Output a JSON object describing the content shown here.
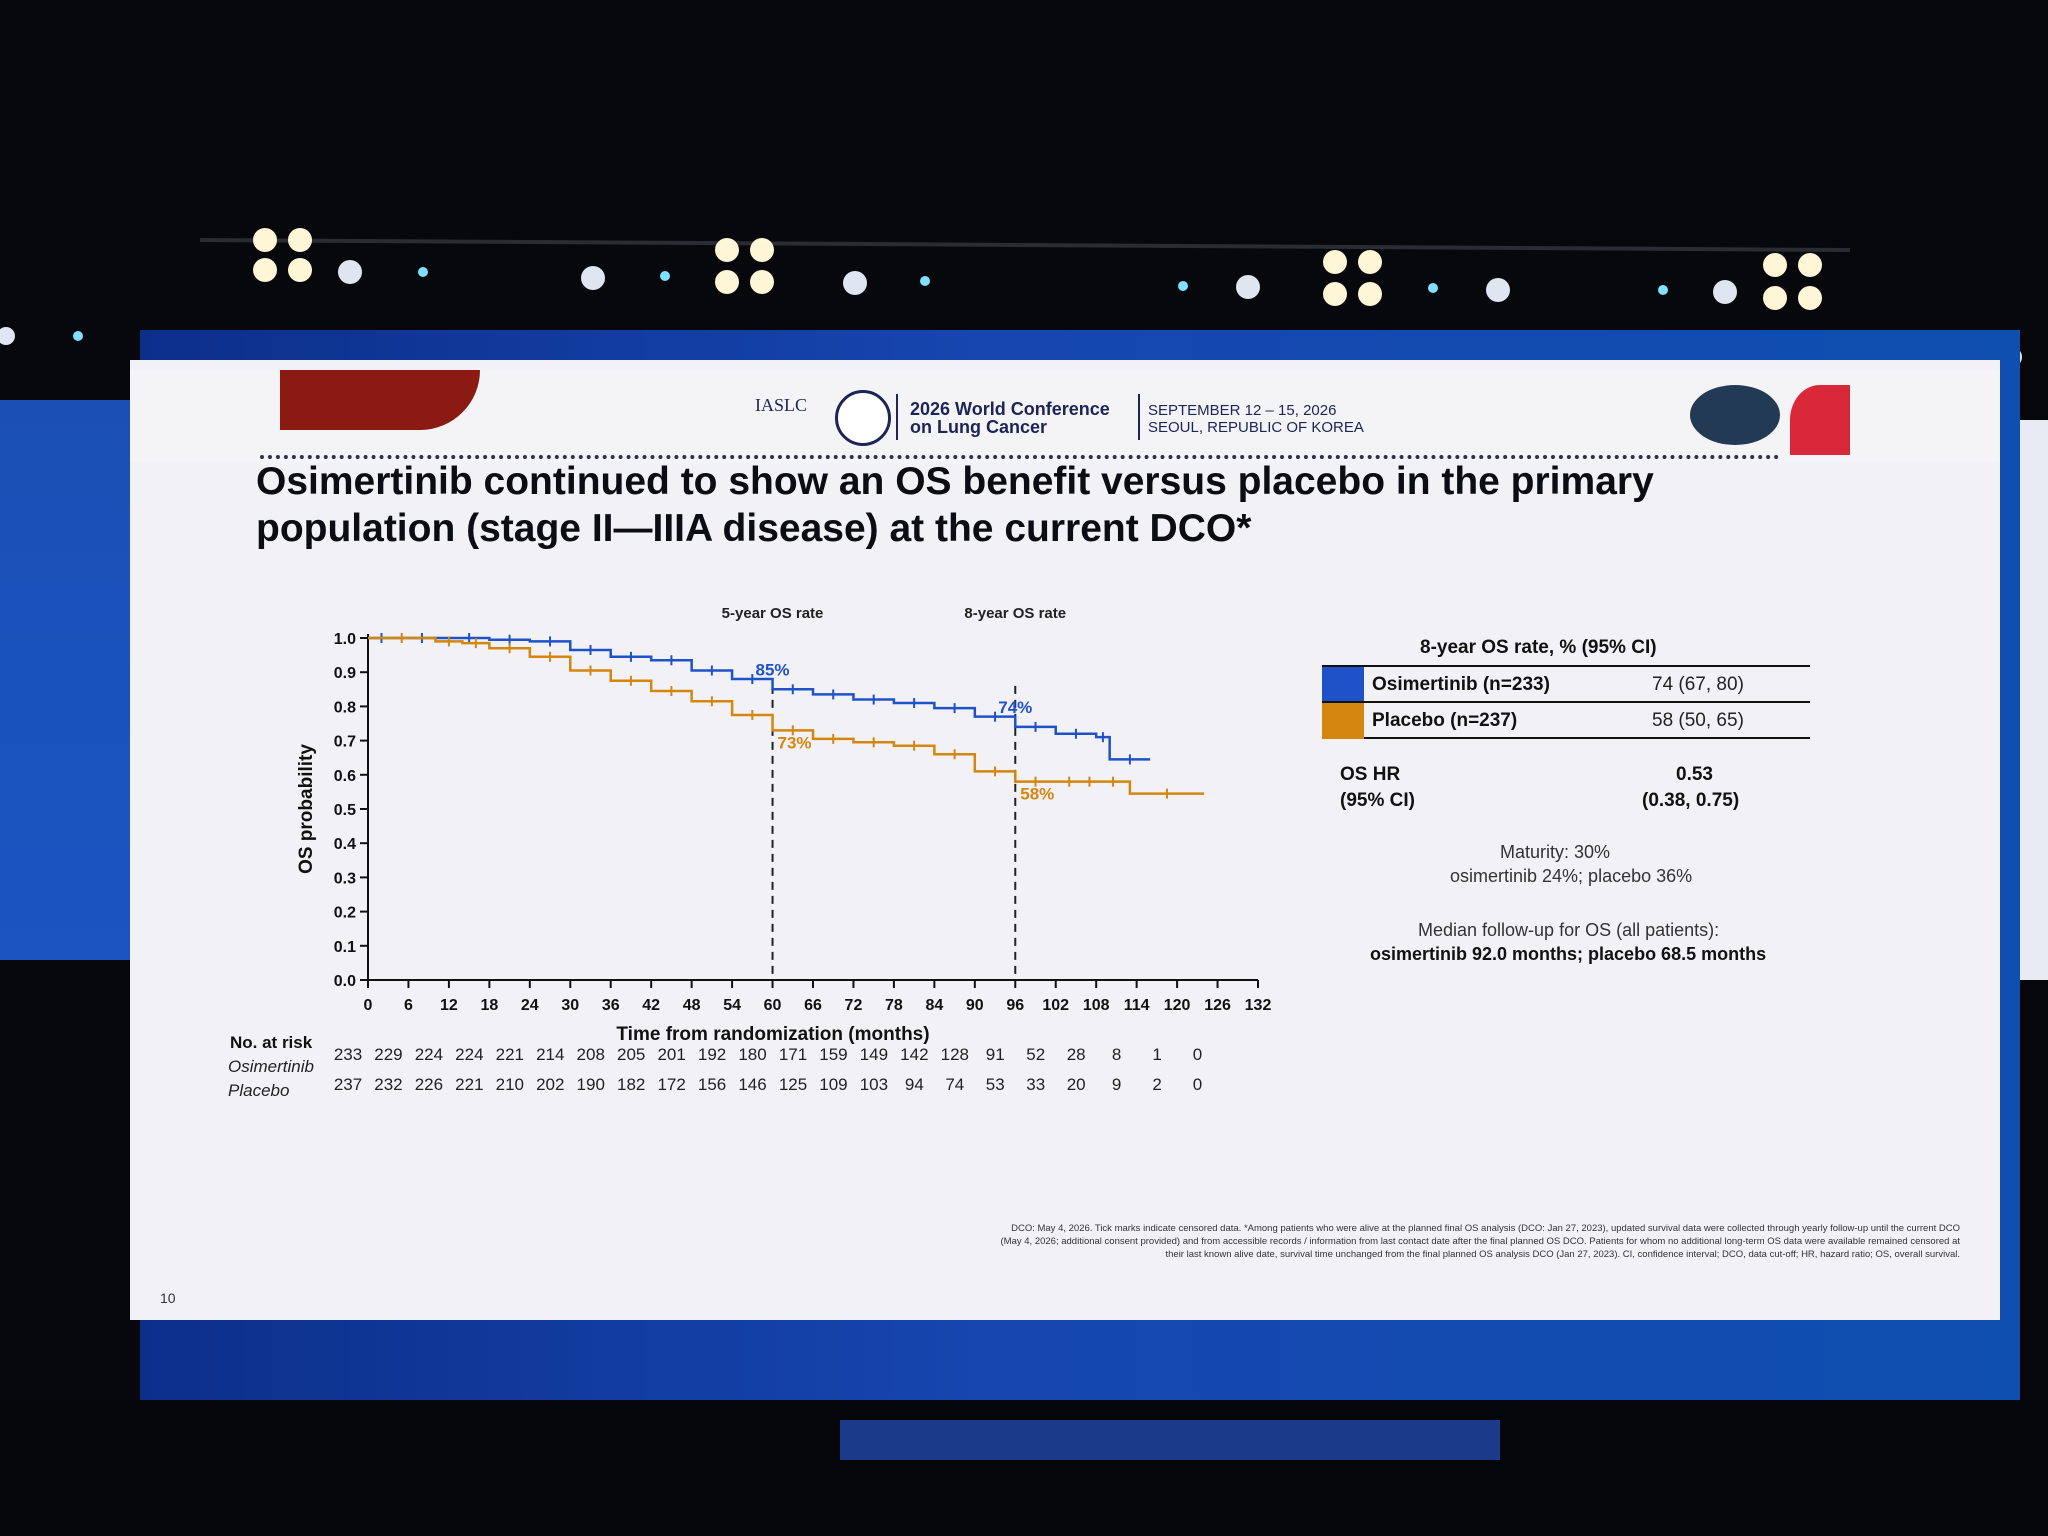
{
  "conference": {
    "org_logo_text": "IASLC",
    "name_line1": "2026 World Conference",
    "name_line2": "on Lung Cancer",
    "date": "SEPTEMBER 12 – 15, 2026",
    "location": "SEOUL, REPUBLIC OF KOREA"
  },
  "slide": {
    "title_line1": "Osimertinib continued to show an OS benefit versus placebo in the primary",
    "title_line2": "population (stage II—IIIA disease) at the current DCO*",
    "page_number": "10",
    "footnote_line1": "DCO: May 4, 2026. Tick marks indicate censored data. *Among patients who were alive at the planned final OS analysis (DCO: Jan 27, 2023), updated survival data were collected through yearly follow-up until the current DCO",
    "footnote_line2": "(May 4, 2026; additional consent provided) and from accessible records / information from last contact date after the final planned OS DCO. Patients for whom no additional long-term OS data were available remained censored at",
    "footnote_line3": "their last known alive date, survival time unchanged from the final planned OS analysis DCO (Jan 27, 2023). CI, confidence interval; DCO, data cut-off; HR, hazard ratio; OS, overall survival."
  },
  "legend": {
    "title": "8-year OS rate, % (95% CI)",
    "rows": [
      {
        "label": "Osimertinib (n=233)",
        "value": "74 (67, 80)",
        "color": "#1f52c8"
      },
      {
        "label": "Placebo (n=237)",
        "value": "58 (50, 65)",
        "color": "#d4860f"
      }
    ]
  },
  "stats": {
    "hr_label_line1": "OS HR",
    "hr_label_line2": "(95% CI)",
    "hr_value": "0.53",
    "hr_ci": "(0.38, 0.75)",
    "maturity_line1": "Maturity: 30%",
    "maturity_line2": "osimertinib 24%; placebo 36%",
    "followup_line1": "Median follow-up for OS (all patients):",
    "followup_line2": "osimertinib 92.0 months; placebo 68.5 months"
  },
  "chart_data": {
    "type": "line",
    "xlabel": "Time from randomization (months)",
    "ylabel": "OS probability",
    "xlim": [
      0,
      132
    ],
    "ylim": [
      0,
      1.0
    ],
    "x_ticks": [
      0,
      6,
      12,
      18,
      24,
      30,
      36,
      42,
      48,
      54,
      60,
      66,
      72,
      78,
      84,
      90,
      96,
      102,
      108,
      114,
      120,
      126,
      132
    ],
    "y_ticks": [
      "0.0",
      "0.1",
      "0.2",
      "0.3",
      "0.4",
      "0.5",
      "0.6",
      "0.7",
      "0.8",
      "0.9",
      "1.0"
    ],
    "annotations": [
      {
        "label": "5-year OS rate",
        "x": 60
      },
      {
        "label": "8-year OS rate",
        "x": 96
      }
    ],
    "series": [
      {
        "name": "Osimertinib",
        "color": "#1f52c8",
        "x": [
          0,
          4,
          12,
          18,
          24,
          30,
          36,
          42,
          48,
          54,
          60,
          66,
          72,
          78,
          84,
          90,
          96,
          102,
          108,
          110,
          116
        ],
        "y": [
          1.0,
          1.0,
          1.0,
          0.995,
          0.99,
          0.965,
          0.945,
          0.935,
          0.905,
          0.88,
          0.85,
          0.835,
          0.82,
          0.81,
          0.795,
          0.77,
          0.74,
          0.72,
          0.71,
          0.645,
          0.645
        ],
        "rate_labels": [
          {
            "x": 60,
            "y": 0.85,
            "text": "85%"
          },
          {
            "x": 96,
            "y": 0.74,
            "text": "74%"
          }
        ]
      },
      {
        "name": "Placebo",
        "color": "#d4860f",
        "x": [
          0,
          10,
          14,
          18,
          24,
          30,
          36,
          42,
          48,
          54,
          60,
          66,
          72,
          78,
          84,
          90,
          96,
          102,
          106,
          108,
          113,
          124
        ],
        "y": [
          1.0,
          0.99,
          0.985,
          0.97,
          0.945,
          0.905,
          0.875,
          0.845,
          0.815,
          0.775,
          0.73,
          0.705,
          0.695,
          0.685,
          0.66,
          0.61,
          0.58,
          0.58,
          0.58,
          0.58,
          0.545,
          0.545
        ],
        "rate_labels": [
          {
            "x": 60,
            "y": 0.73,
            "text": "73%"
          },
          {
            "x": 96,
            "y": 0.58,
            "text": "58%"
          }
        ]
      }
    ],
    "at_risk": {
      "title": "No. at risk",
      "rows": [
        {
          "name": "Osimertinib",
          "values": [
            "233",
            "229",
            "224",
            "224",
            "221",
            "214",
            "208",
            "205",
            "201",
            "192",
            "180",
            "171",
            "159",
            "149",
            "142",
            "128",
            "91",
            "52",
            "28",
            "8",
            "1",
            "0"
          ]
        },
        {
          "name": "Placebo",
          "values": [
            "237",
            "232",
            "226",
            "221",
            "210",
            "202",
            "190",
            "182",
            "172",
            "156",
            "146",
            "125",
            "109",
            "103",
            "94",
            "74",
            "53",
            "33",
            "20",
            "9",
            "2",
            "0"
          ]
        }
      ]
    }
  }
}
